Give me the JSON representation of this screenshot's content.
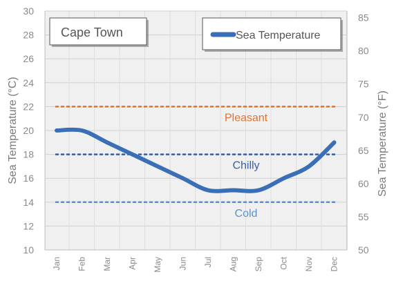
{
  "chart_data": {
    "type": "line",
    "location": "Cape Town",
    "categories": [
      "Jan",
      "Feb",
      "Mar",
      "Apr",
      "May",
      "Jun",
      "Jul",
      "Aug",
      "Sep",
      "Oct",
      "Nov",
      "Dec"
    ],
    "series": [
      {
        "name": "Sea Temperature",
        "values": [
          20,
          20,
          19,
          18,
          17,
          16,
          15,
          15,
          15,
          16,
          17,
          19
        ],
        "color": "#3a6fb7"
      }
    ],
    "y_left": {
      "label": "Sea Temperature (°C)",
      "label_main": "Sea Temperature (",
      "label_unit": "°C",
      "ylim": [
        10,
        30
      ],
      "ticks": [
        "10",
        "12",
        "14",
        "16",
        "18",
        "20",
        "22",
        "24",
        "26",
        "28",
        "30"
      ]
    },
    "y_right": {
      "label": "Sea Temperature (°F)",
      "label_main": "Sea Temperature (",
      "label_unit": "°F",
      "ylim": [
        50,
        86
      ],
      "ticks": [
        "50",
        "55",
        "60",
        "65",
        "70",
        "75",
        "80",
        "85"
      ]
    },
    "reference_lines": [
      {
        "label": "Pleasant",
        "value": 22,
        "color": "#e0722e"
      },
      {
        "label": "Chilly",
        "value": 18,
        "color": "#3a5f9e"
      },
      {
        "label": "Cold",
        "value": 14,
        "color": "#5b8fd0"
      }
    ],
    "grid": true,
    "legend_position": "top-right"
  }
}
